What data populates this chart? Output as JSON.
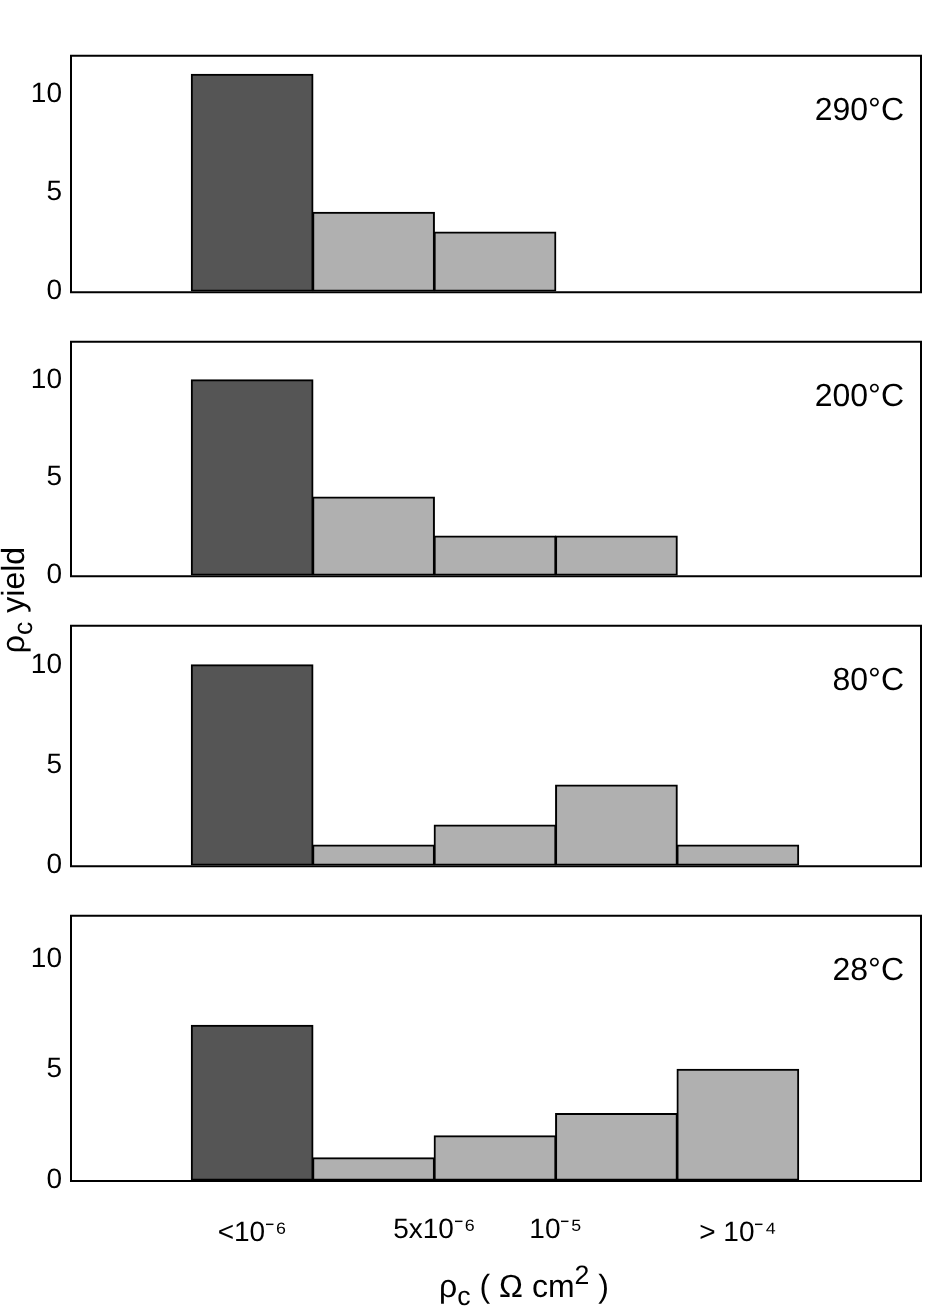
{
  "chart_data": [
    {
      "type": "bar",
      "categories": [
        null,
        null,
        null
      ],
      "values": [
        11,
        4,
        3
      ],
      "colors": [
        "#555555",
        "#b0b0b0",
        "#b0b0b0"
      ],
      "ylim": [
        0,
        12
      ],
      "yticks": [
        0,
        5,
        10
      ],
      "tick_labels": "y",
      "grid": false,
      "legend": false,
      "annotations": [
        "290°C"
      ]
    },
    {
      "type": "bar",
      "categories": [
        null,
        null,
        null,
        null
      ],
      "values": [
        10,
        4,
        2,
        2
      ],
      "colors": [
        "#555555",
        "#b0b0b0",
        "#b0b0b0",
        "#b0b0b0"
      ],
      "ylim": [
        0,
        12
      ],
      "yticks": [
        0,
        5,
        10
      ],
      "tick_labels": "y",
      "grid": false,
      "legend": false,
      "ylabel": "ρ$_{c}$ yield",
      "annotations": [
        "200°C"
      ]
    },
    {
      "type": "bar",
      "categories": [
        null,
        null,
        null,
        null,
        null
      ],
      "values": [
        10,
        1,
        2,
        4,
        1
      ],
      "colors": [
        "#555555",
        "#b0b0b0",
        "#b0b0b0",
        "#b0b0b0",
        "#b0b0b0"
      ],
      "ylim": [
        0,
        12
      ],
      "yticks": [
        0,
        5,
        10
      ],
      "tick_labels": "y",
      "grid": false,
      "legend": false,
      "annotations": [
        "80°C"
      ]
    },
    {
      "type": "bar",
      "categories": [
        "<10⁻⁶",
        null,
        null,
        null,
        "> 10⁻⁴"
      ],
      "values": [
        7,
        1,
        2,
        3,
        5
      ],
      "colors": [
        "#555555",
        "#b0b0b0",
        "#b0b0b0",
        "#b0b0b0",
        "#b0b0b0"
      ],
      "ylim": [
        0,
        12
      ],
      "yticks": [
        0,
        5,
        10
      ],
      "grid": false,
      "legend": false,
      "xlabel": "ρ$_{c}$ ( Ω cm$^{2}$ )",
      "annotations": [
        "28°C",
        "5x10⁻⁶",
        "10⁻⁵"
      ]
    }
  ]
}
